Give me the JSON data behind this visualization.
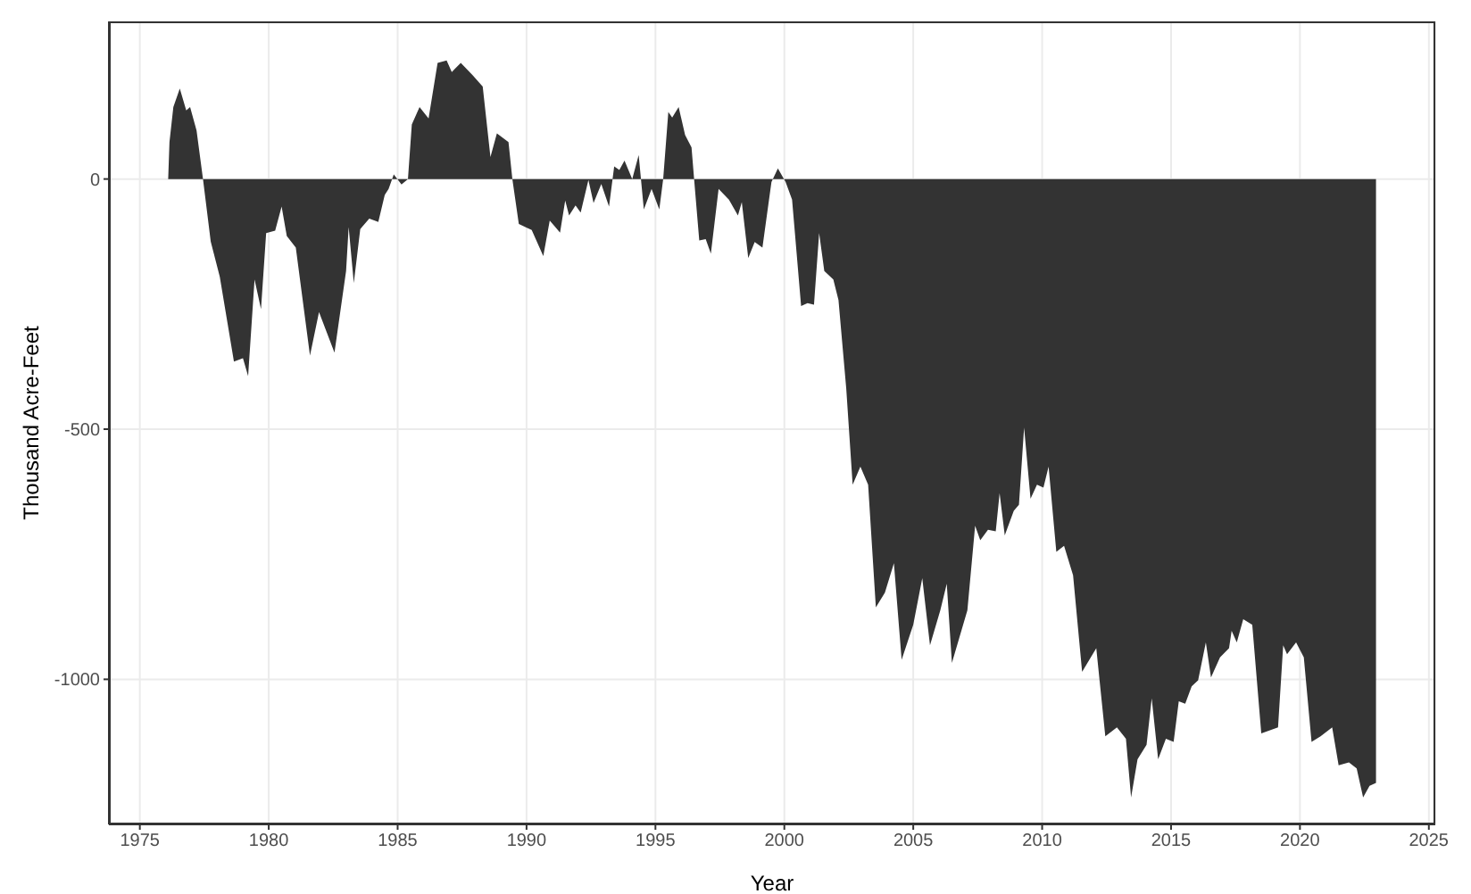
{
  "chart_data": {
    "type": "area",
    "xlabel": "Year",
    "ylabel": "Thousand Acre-Feet",
    "xlim": [
      1973.8,
      2025.25
    ],
    "xticks": [
      1975,
      1980,
      1985,
      1990,
      1995,
      2000,
      2005,
      2010,
      2015,
      2020,
      2025
    ],
    "ylim": [
      -1290,
      315
    ],
    "yticks": [
      -1000,
      -500,
      0
    ],
    "grid": true,
    "series": [
      {
        "color": "#333333",
        "x": [
          1976.1,
          1976.15,
          1976.3,
          1976.55,
          1976.8,
          1976.95,
          1977.2,
          1977.45,
          1977.75,
          1978.1,
          1978.65,
          1979.0,
          1979.2,
          1979.45,
          1979.7,
          1979.9,
          1980.25,
          1980.5,
          1980.7,
          1981.05,
          1981.6,
          1981.95,
          1982.55,
          1983.0,
          1983.1,
          1983.3,
          1983.55,
          1983.9,
          1984.25,
          1984.5,
          1984.65,
          1984.85,
          1985.15,
          1985.4,
          1985.55,
          1985.85,
          1986.2,
          1986.55,
          1986.9,
          1987.1,
          1987.45,
          1987.9,
          1988.3,
          1988.6,
          1988.85,
          1989.3,
          1989.45,
          1989.7,
          1990.2,
          1990.65,
          1990.9,
          1991.3,
          1991.5,
          1991.65,
          1991.9,
          1992.1,
          1992.4,
          1992.6,
          1992.9,
          1993.2,
          1993.4,
          1993.6,
          1993.8,
          1994.1,
          1994.35,
          1994.55,
          1994.85,
          1995.15,
          1995.3,
          1995.5,
          1995.65,
          1995.9,
          1996.15,
          1996.4,
          1996.5,
          1996.7,
          1996.95,
          1997.15,
          1997.45,
          1997.85,
          1998.2,
          1998.35,
          1998.6,
          1998.85,
          1999.15,
          1999.5,
          1999.75,
          2000.05,
          2000.3,
          2000.65,
          2000.9,
          2001.15,
          2001.35,
          2001.55,
          2001.9,
          2002.1,
          2002.4,
          2002.65,
          2002.95,
          2003.25,
          2003.55,
          2003.9,
          2004.25,
          2004.55,
          2005.0,
          2005.35,
          2005.65,
          2006.05,
          2006.3,
          2006.5,
          2007.1,
          2007.4,
          2007.6,
          2007.9,
          2008.2,
          2008.35,
          2008.55,
          2008.9,
          2009.1,
          2009.3,
          2009.55,
          2009.8,
          2010.05,
          2010.25,
          2010.55,
          2010.85,
          2011.2,
          2011.55,
          2012.1,
          2012.45,
          2012.9,
          2013.25,
          2013.45,
          2013.7,
          2014.05,
          2014.25,
          2014.5,
          2014.8,
          2015.1,
          2015.3,
          2015.55,
          2015.8,
          2016.05,
          2016.35,
          2016.55,
          2016.9,
          2017.25,
          2017.35,
          2017.55,
          2017.8,
          2018.15,
          2018.5,
          2019.15,
          2019.35,
          2019.5,
          2019.85,
          2020.15,
          2020.45,
          2020.8,
          2021.25,
          2021.5,
          2021.9,
          2022.2,
          2022.45,
          2022.7,
          2022.95
        ],
        "values": [
          0,
          74,
          144,
          181,
          137,
          144,
          97,
          0,
          -125,
          -195,
          -365,
          -358,
          -394,
          -201,
          -260,
          -108,
          -103,
          -55,
          -114,
          -137,
          -353,
          -266,
          -347,
          -184,
          -96,
          -208,
          -100,
          -79,
          -86,
          -32,
          -20,
          9,
          -11,
          0,
          109,
          144,
          121,
          232,
          237,
          214,
          232,
          208,
          185,
          44,
          91,
          74,
          0,
          -90,
          -102,
          -154,
          -83,
          -107,
          -43,
          -73,
          -53,
          -67,
          -2,
          -48,
          -10,
          -55,
          25,
          18,
          37,
          0,
          48,
          -61,
          -20,
          -61,
          0,
          134,
          123,
          144,
          88,
          63,
          0,
          -123,
          -120,
          -149,
          -20,
          -41,
          -73,
          -46,
          -158,
          -126,
          -137,
          -6,
          21,
          -6,
          -41,
          -254,
          -248,
          -251,
          -108,
          -184,
          -201,
          -242,
          -418,
          -611,
          -575,
          -611,
          -856,
          -827,
          -768,
          -961,
          -891,
          -798,
          -932,
          -862,
          -809,
          -967,
          -862,
          -693,
          -722,
          -701,
          -704,
          -628,
          -712,
          -663,
          -651,
          -497,
          -639,
          -611,
          -617,
          -575,
          -745,
          -733,
          -792,
          -985,
          -938,
          -1114,
          -1096,
          -1119,
          -1236,
          -1160,
          -1131,
          -1038,
          -1160,
          -1119,
          -1125,
          -1044,
          -1049,
          -1014,
          -1002,
          -926,
          -996,
          -956,
          -938,
          -903,
          -926,
          -880,
          -891,
          -1108,
          -1096,
          -932,
          -950,
          -926,
          -956,
          -1125,
          -1114,
          -1096,
          -1172,
          -1166,
          -1178,
          -1236,
          -1213,
          -1207
        ]
      }
    ]
  }
}
